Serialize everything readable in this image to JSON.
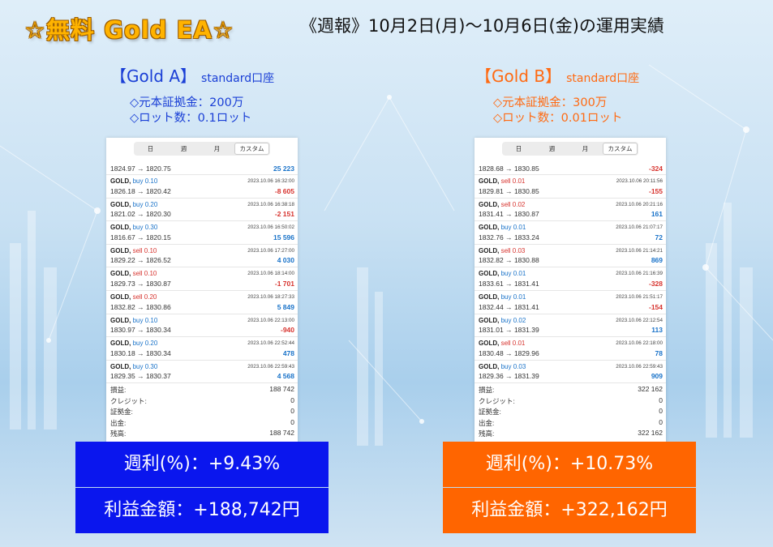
{
  "headline": "☆無料 Gold EA☆",
  "subtitle": "《週報》10月2日(月)〜10月6日(金)の運用実績",
  "accounts": [
    {
      "name": "【Gold A】",
      "type": "standard口座",
      "capital": "◇元本証拠金：200万",
      "lot": "◇ロット数：0.1ロット",
      "tabs": [
        "日",
        "週",
        "月",
        "カスタム"
      ],
      "first_row": {
        "price": "1824.97 → 1820.75",
        "pl": "25 223"
      },
      "deals": [
        {
          "symbol": "GOLD,",
          "side": "buy",
          "volume": "buy 0.10",
          "time": "2023.10.06 16:32:00",
          "price": "1826.18 → 1820.42",
          "pl": "-8 605"
        },
        {
          "symbol": "GOLD,",
          "side": "buy",
          "volume": "buy 0.20",
          "time": "2023.10.06 16:38:18",
          "price": "1821.02 → 1820.30",
          "pl": "-2 151"
        },
        {
          "symbol": "GOLD,",
          "side": "buy",
          "volume": "buy 0.30",
          "time": "2023.10.06 16:50:02",
          "price": "1816.67 → 1820.15",
          "pl": "15 596"
        },
        {
          "symbol": "GOLD,",
          "side": "sell",
          "volume": "sell 0.10",
          "time": "2023.10.06 17:27:00",
          "price": "1829.22 → 1826.52",
          "pl": "4 030"
        },
        {
          "symbol": "GOLD,",
          "side": "sell",
          "volume": "sell 0.10",
          "time": "2023.10.06 18:14:00",
          "price": "1829.73 → 1830.87",
          "pl": "-1 701"
        },
        {
          "symbol": "GOLD,",
          "side": "sell",
          "volume": "sell 0.20",
          "time": "2023.10.06 18:27:33",
          "price": "1832.82 → 1830.86",
          "pl": "5 849"
        },
        {
          "symbol": "GOLD,",
          "side": "buy",
          "volume": "buy 0.10",
          "time": "2023.10.06 22:13:00",
          "price": "1830.97 → 1830.34",
          "pl": "-940"
        },
        {
          "symbol": "GOLD,",
          "side": "buy",
          "volume": "buy 0.20",
          "time": "2023.10.06 22:52:44",
          "price": "1830.18 → 1830.34",
          "pl": "478"
        },
        {
          "symbol": "GOLD,",
          "side": "buy",
          "volume": "buy 0.30",
          "time": "2023.10.06 22:59:43",
          "price": "1829.35 → 1830.37",
          "pl": "4 568"
        }
      ],
      "summary": [
        {
          "label": "損益:",
          "value": "188 742"
        },
        {
          "label": "クレジット:",
          "value": "0"
        },
        {
          "label": "証拠金:",
          "value": "0"
        },
        {
          "label": "出金:",
          "value": "0"
        },
        {
          "label": "残高:",
          "value": "188 742"
        }
      ],
      "weekly_rate": "週利(%)：+9.43%",
      "profit": "利益金額：+188,742円"
    },
    {
      "name": "【Gold B】",
      "type": "standard口座",
      "capital": "◇元本証拠金：300万",
      "lot": "◇ロット数：0.01ロット",
      "tabs": [
        "日",
        "週",
        "月",
        "カスタム"
      ],
      "first_row": {
        "price": "1828.68 → 1830.85",
        "pl": "-324"
      },
      "deals": [
        {
          "symbol": "GOLD,",
          "side": "sell",
          "volume": "sell 0.01",
          "time": "2023.10.06 20:11:56",
          "price": "1829.81 → 1830.85",
          "pl": "-155"
        },
        {
          "symbol": "GOLD,",
          "side": "sell",
          "volume": "sell 0.02",
          "time": "2023.10.06 20:21:16",
          "price": "1831.41 → 1830.87",
          "pl": "161"
        },
        {
          "symbol": "GOLD,",
          "side": "buy",
          "volume": "buy 0.01",
          "time": "2023.10.06 21:07:17",
          "price": "1832.76 → 1833.24",
          "pl": "72"
        },
        {
          "symbol": "GOLD,",
          "side": "sell",
          "volume": "sell 0.03",
          "time": "2023.10.06 21:14:21",
          "price": "1832.82 → 1830.88",
          "pl": "869"
        },
        {
          "symbol": "GOLD,",
          "side": "buy",
          "volume": "buy 0.01",
          "time": "2023.10.06 21:16:39",
          "price": "1833.61 → 1831.41",
          "pl": "-328"
        },
        {
          "symbol": "GOLD,",
          "side": "buy",
          "volume": "buy 0.01",
          "time": "2023.10.06 21:51:17",
          "price": "1832.44 → 1831.41",
          "pl": "-154"
        },
        {
          "symbol": "GOLD,",
          "side": "buy",
          "volume": "buy 0.02",
          "time": "2023.10.06 22:12:54",
          "price": "1831.01 → 1831.39",
          "pl": "113"
        },
        {
          "symbol": "GOLD,",
          "side": "sell",
          "volume": "sell 0.01",
          "time": "2023.10.06 22:18:00",
          "price": "1830.48 → 1829.96",
          "pl": "78"
        },
        {
          "symbol": "GOLD,",
          "side": "buy",
          "volume": "buy 0.03",
          "time": "2023.10.06 22:59:43",
          "price": "1829.36 → 1831.39",
          "pl": "909"
        }
      ],
      "summary": [
        {
          "label": "損益:",
          "value": "322 162"
        },
        {
          "label": "クレジット:",
          "value": "0"
        },
        {
          "label": "証拠金:",
          "value": "0"
        },
        {
          "label": "出金:",
          "value": "0"
        },
        {
          "label": "残高:",
          "value": "322 162"
        }
      ],
      "weekly_rate": "週利(%)：+10.73%",
      "profit": "利益金額：+322,162円"
    }
  ]
}
